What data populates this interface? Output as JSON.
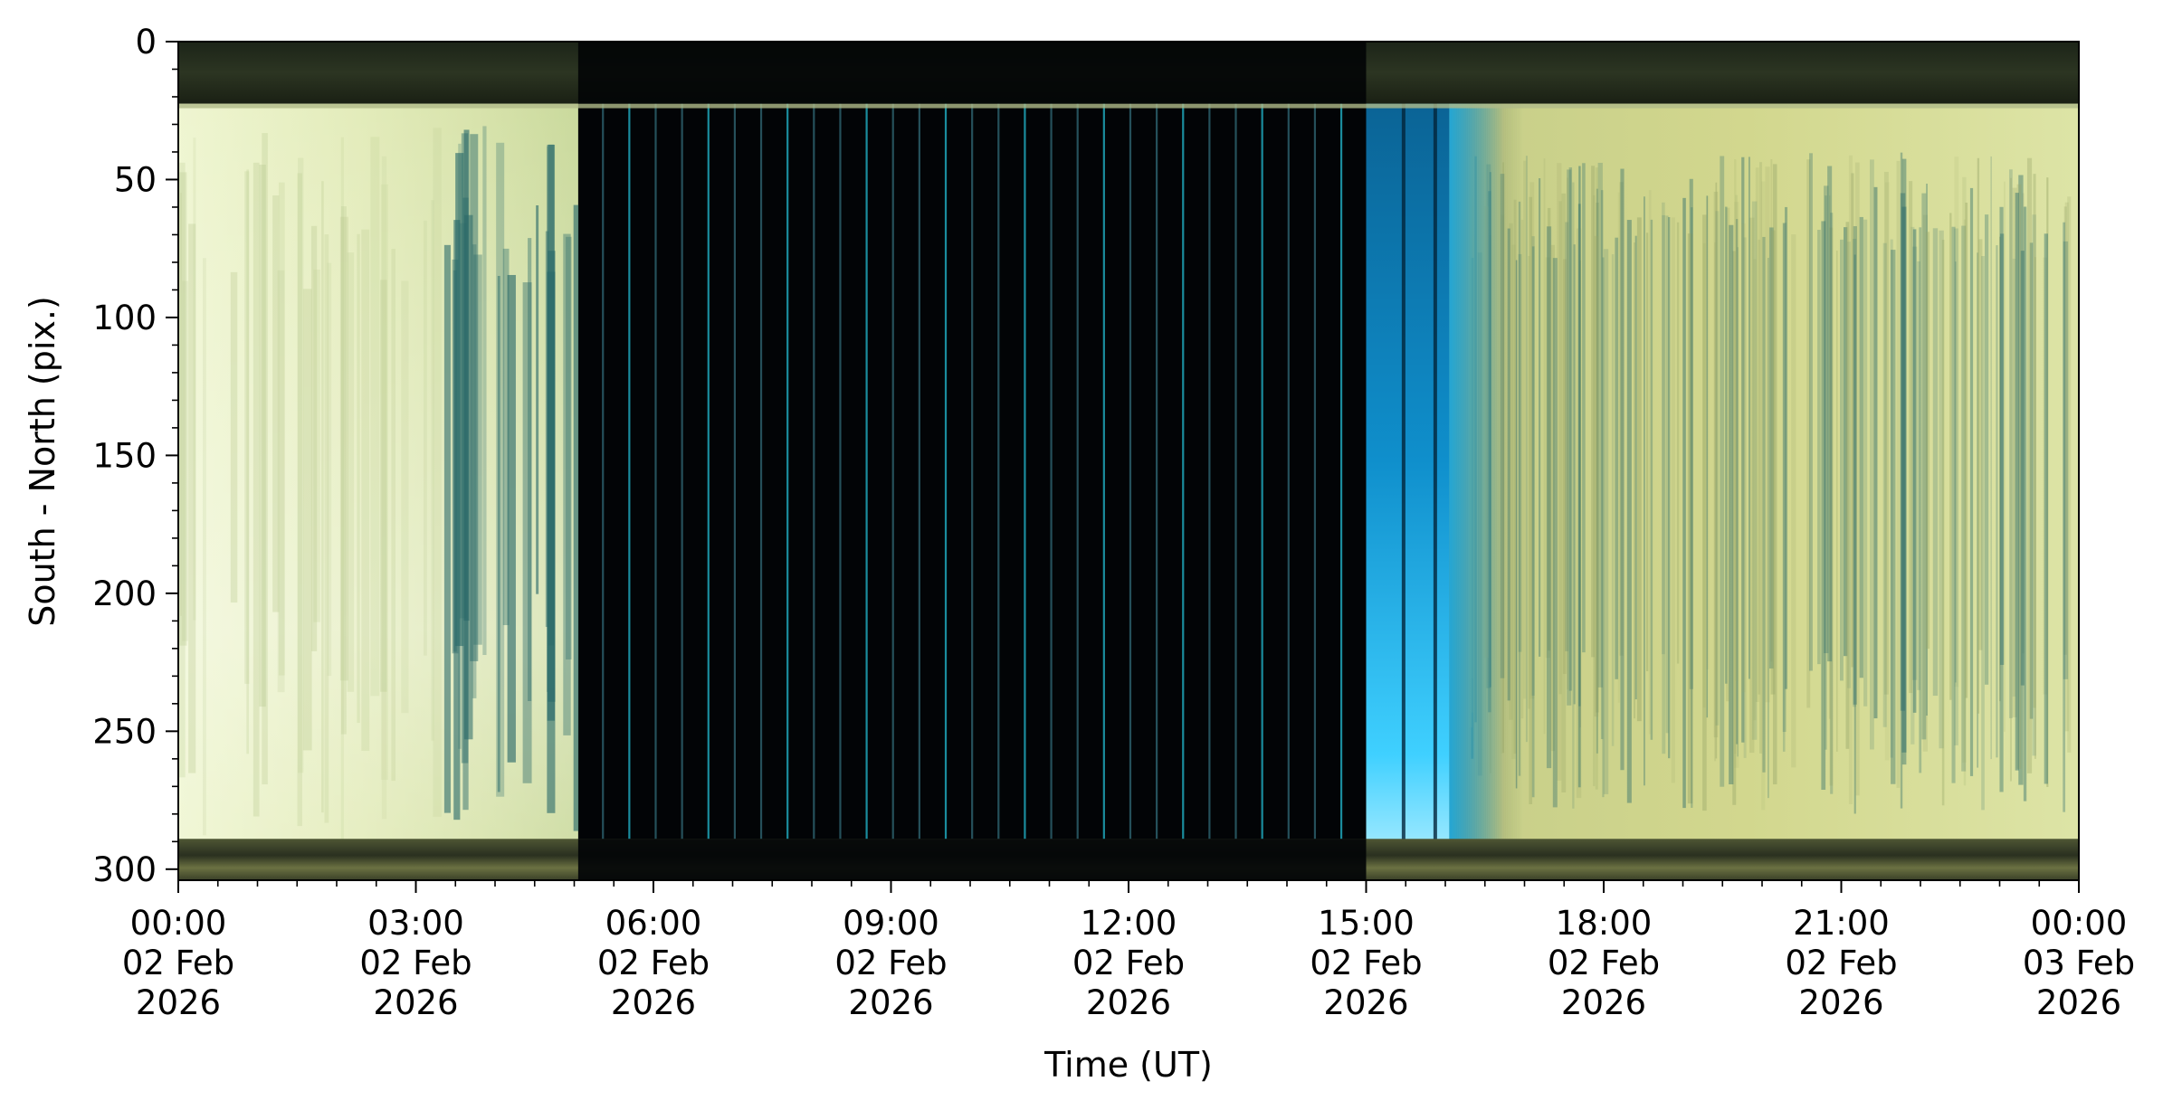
{
  "chart_data": {
    "type": "heatmap",
    "title": "",
    "xlabel": "Time (UT)",
    "ylabel": "South - North (pix.)",
    "x_range": [
      "2026-02-02T00:00",
      "2026-02-03T00:00"
    ],
    "x_ticks": [
      {
        "value": "2026-02-02T00:00",
        "label": [
          "00:00",
          "02 Feb",
          "2026"
        ]
      },
      {
        "value": "2026-02-02T03:00",
        "label": [
          "03:00",
          "02 Feb",
          "2026"
        ]
      },
      {
        "value": "2026-02-02T06:00",
        "label": [
          "06:00",
          "02 Feb",
          "2026"
        ]
      },
      {
        "value": "2026-02-02T09:00",
        "label": [
          "09:00",
          "02 Feb",
          "2026"
        ]
      },
      {
        "value": "2026-02-02T12:00",
        "label": [
          "12:00",
          "02 Feb",
          "2026"
        ]
      },
      {
        "value": "2026-02-02T15:00",
        "label": [
          "15:00",
          "02 Feb",
          "2026"
        ]
      },
      {
        "value": "2026-02-02T18:00",
        "label": [
          "18:00",
          "02 Feb",
          "2026"
        ]
      },
      {
        "value": "2026-02-02T21:00",
        "label": [
          "21:00",
          "02 Feb",
          "2026"
        ]
      },
      {
        "value": "2026-02-03T00:00",
        "label": [
          "00:00",
          "03 Feb",
          "2026"
        ]
      }
    ],
    "x_minor_tick_hours": 0.5,
    "y_range": [
      0,
      304
    ],
    "y_inverted": true,
    "y_ticks": [
      0,
      50,
      100,
      150,
      200,
      250,
      300
    ],
    "y_minor_tick_step": 10,
    "grid": false,
    "colors": {
      "day_sky": "#e6efbc",
      "night_sky": "#020406",
      "twilight": "#18b6ef",
      "streaks": "#2a6a6a",
      "frame_band": "#3a4226"
    }
  }
}
